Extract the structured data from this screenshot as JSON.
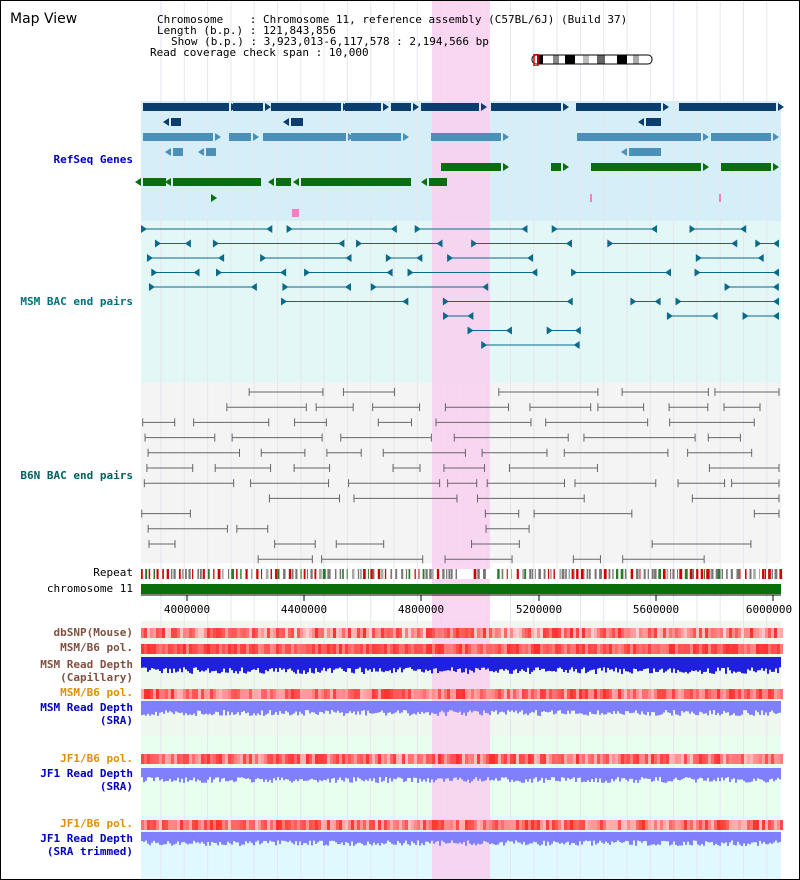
{
  "header": {
    "title": "Map View",
    "chromosome_label": "Chromosome",
    "chromosome_value": "Chromosome 11, reference assembly (C57BL/6J) (Build 37)",
    "length_label": "Length (b.p.)",
    "length_value": "121,843,856",
    "show_label": "Show (b.p.)",
    "show_value": "3,923,013-6,117,578 : 2,194,566 bp",
    "span_label": "Read coverage check span",
    "span_value": "10,000"
  },
  "tracks": {
    "refseq": "RefSeq Genes",
    "msm_bac": "MSM BAC end pairs",
    "b6n_bac": "B6N BAC end pairs",
    "repeat": "Repeat",
    "chromosome": "chromosome 11",
    "dbsnp": "dbSNP(Mouse)",
    "msm_b6_pol_1": "MSM/B6 pol.",
    "msm_depth_cap_1": "MSM Read Depth",
    "msm_depth_cap_2": "(Capillary)",
    "msm_b6_pol_2": "MSM/B6 pol.",
    "msm_depth_sra_1": "MSM Read Depth",
    "msm_depth_sra_2": "(SRA)",
    "jf1_pol_1": "JF1/B6 pol.",
    "jf1_depth_1": "JF1 Read Depth",
    "jf1_depth_2": "(SRA)",
    "jf1_pol_2": "JF1/B6 pol.",
    "jf1_trim_1": "JF1 Read Depth",
    "jf1_trim_2": "(SRA trimmed)"
  },
  "axis": {
    "ticks": [
      "4000000",
      "4400000",
      "4800000",
      "5200000",
      "5600000",
      "6000000"
    ]
  },
  "colors": {
    "refseq_bg": "#d6eef8",
    "msm_bg": "#e3f7f7",
    "b6n_bg": "#f4f4f4",
    "highlight": "#f8d0f0",
    "gene_dark": "#0b3d6e",
    "gene_mid": "#4a90b8",
    "gene_green": "#0a6e0a",
    "msm_line": "#0a6a8a",
    "b6n_line": "#666666",
    "chrom_bar": "#0a6e0a",
    "depth_blue": "#1f1fe0",
    "depth_light": "#8080ff",
    "label_blue": "#0000c0",
    "label_teal": "#00707a",
    "label_orange": "#e09000",
    "label_brown": "#805040"
  }
}
